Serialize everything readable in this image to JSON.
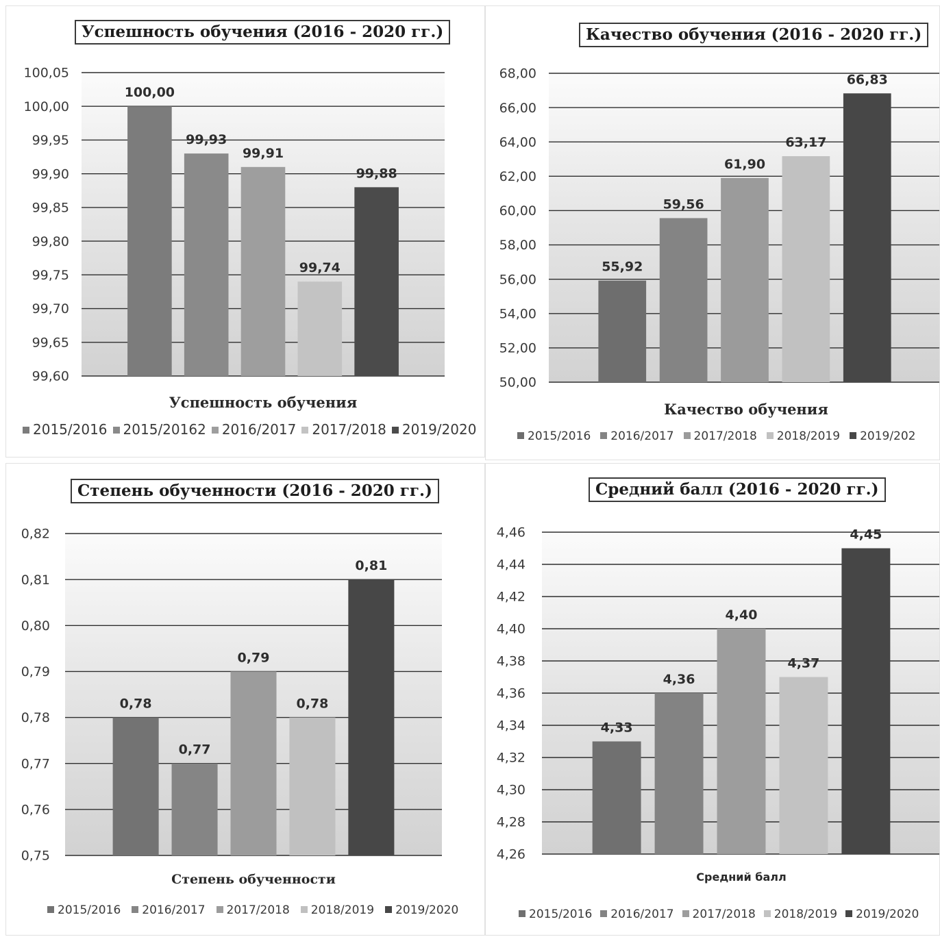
{
  "chart_data": [
    {
      "type": "bar",
      "title": "Успешность обучения (2016 - 2020 гг.)",
      "xlabel": "Успешность обучения",
      "ylabel": "",
      "categories": [
        "2015/2016",
        "2015/20162",
        "2016/2017",
        "2017/2018",
        "2019/2020"
      ],
      "values": [
        100.0,
        99.93,
        99.91,
        99.74,
        99.88
      ],
      "value_labels": [
        "100,00",
        "99,93",
        "99,91",
        "99,74",
        "99,88"
      ],
      "colors": [
        "#7c7c7c",
        "#8a8a8a",
        "#9e9e9e",
        "#c3c3c3",
        "#4b4b4b"
      ],
      "ylim": [
        99.6,
        100.05
      ],
      "ticks": [
        "100,05",
        "100,00",
        "99,95",
        "99,90",
        "99,85",
        "99,80",
        "99,75",
        "99,70",
        "99,65",
        "99,60"
      ],
      "grid": true,
      "legend": "bottom"
    },
    {
      "type": "bar",
      "title": "Качество обучения (2016 - 2020 гг.)",
      "xlabel": "Качество обучения",
      "ylabel": "",
      "categories": [
        "2015/2016",
        "2016/2017",
        "2017/2018",
        "2018/2019",
        "2019/202"
      ],
      "values": [
        55.92,
        59.56,
        61.9,
        63.17,
        66.83
      ],
      "value_labels": [
        "55,92",
        "59,56",
        "61,90",
        "63,17",
        "66,83"
      ],
      "colors": [
        "#6e6e6e",
        "#848484",
        "#9b9b9b",
        "#c1c1c1",
        "#474747"
      ],
      "ylim": [
        50,
        68
      ],
      "ticks": [
        "68,00",
        "66,00",
        "64,00",
        "62,00",
        "60,00",
        "58,00",
        "56,00",
        "54,00",
        "52,00",
        "50,00"
      ],
      "grid": true,
      "legend": "bottom"
    },
    {
      "type": "bar",
      "title": "Степень обученности (2016 - 2020 гг.)",
      "xlabel": "Степень обученности",
      "ylabel": "",
      "categories": [
        "2015/2016",
        "2016/2017",
        "2017/2018",
        "2018/2019",
        "2019/2020"
      ],
      "values": [
        0.78,
        0.77,
        0.79,
        0.78,
        0.81
      ],
      "value_labels": [
        "0,78",
        "0,77",
        "0,79",
        "0,78",
        "0,81"
      ],
      "colors": [
        "#737373",
        "#858585",
        "#9c9c9c",
        "#c0c0c0",
        "#474747"
      ],
      "ylim": [
        0.75,
        0.82
      ],
      "ticks": [
        "0,82",
        "0,81",
        "0,80",
        "0,79",
        "0,78",
        "0,77",
        "0,76",
        "0,75"
      ],
      "grid": true,
      "legend": "bottom"
    },
    {
      "type": "bar",
      "title": "Средний балл (2016 - 2020 гг.)",
      "xlabel": "Средний балл",
      "ylabel": "",
      "categories": [
        "2015/2016",
        "2016/2017",
        "2017/2018",
        "2018/2019",
        "2019/2020"
      ],
      "values": [
        4.33,
        4.36,
        4.4,
        4.37,
        4.45
      ],
      "value_labels": [
        "4,33",
        "4,36",
        "4,40",
        "4,37",
        "4,45"
      ],
      "colors": [
        "#707070",
        "#838383",
        "#9d9d9d",
        "#c2c2c2",
        "#464646"
      ],
      "ylim": [
        4.26,
        4.46
      ],
      "ticks": [
        "4,46",
        "4,44",
        "4,42",
        "4,40",
        "4,38",
        "4,36",
        "4,34",
        "4,32",
        "4,30",
        "4,28",
        "4,26"
      ],
      "grid": true,
      "legend": "bottom"
    }
  ]
}
